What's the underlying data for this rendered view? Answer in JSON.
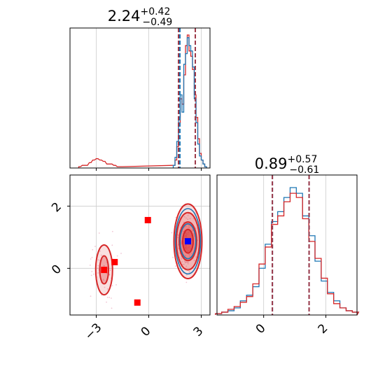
{
  "chart_data": {
    "type": "corner",
    "colors": {
      "blue": "#1f77b4",
      "red": "#d62728",
      "red_dash": "#9e3a4a",
      "marker_red": "#ff0000",
      "marker_blue": "#0000ff",
      "grid": "#cccccc"
    },
    "parameters": [
      {
        "title_value": "2.24",
        "title_plus": "+0.42",
        "title_minus": "−0.49",
        "range": [
          -4.5,
          3.5
        ],
        "ticks": [
          -3,
          0,
          3
        ],
        "tick_labels": [
          "−3",
          "0",
          "3"
        ],
        "quantiles_blue": [
          1.78,
          2.66
        ],
        "quantiles_red": [
          1.7,
          2.66
        ]
      },
      {
        "title_value": "0.89",
        "title_plus": "+0.57",
        "title_minus": "−0.61",
        "range": [
          -1.5,
          3.0
        ],
        "ticks": [
          0,
          2
        ],
        "tick_labels": [
          "0",
          "2"
        ],
        "quantiles_blue": [
          0.28,
          1.46
        ],
        "quantiles_red": [
          0.28,
          1.46
        ]
      }
    ],
    "hist_blue_p1": {
      "x": [
        1.45,
        1.55,
        1.65,
        1.75,
        1.85,
        1.95,
        2.05,
        2.15,
        2.25,
        2.35,
        2.45,
        2.55,
        2.65,
        2.75,
        2.85,
        2.95,
        3.05,
        3.15,
        3.25
      ],
      "y": [
        2,
        8,
        20,
        38,
        55,
        42,
        78,
        86,
        98,
        92,
        88,
        76,
        52,
        34,
        18,
        9,
        6,
        3,
        1
      ]
    },
    "hist_red_p1": {
      "x": [
        -3.95,
        -3.75,
        -3.55,
        -3.35,
        -3.15,
        -2.95,
        -2.75,
        -2.55,
        -2.35,
        -2.15,
        -1.95,
        -1.75,
        -1.55,
        1.45,
        1.55,
        1.65,
        1.75,
        1.85,
        1.95,
        2.05,
        2.15,
        2.25,
        2.35,
        2.45,
        2.55,
        2.65,
        2.75,
        2.85,
        2.95,
        3.05,
        3.15,
        3.25
      ],
      "y": [
        1,
        2,
        2,
        4,
        6,
        7,
        6,
        5,
        3,
        3,
        2,
        1,
        1,
        2,
        6,
        16,
        34,
        52,
        48,
        70,
        92,
        100,
        88,
        84,
        74,
        55,
        38,
        22,
        11,
        6,
        3,
        1
      ]
    },
    "hist_blue_p2": {
      "x": [
        -1.45,
        -1.25,
        -1.05,
        -0.85,
        -0.65,
        -0.45,
        -0.25,
        -0.05,
        0.15,
        0.35,
        0.55,
        0.75,
        0.95,
        1.15,
        1.35,
        1.55,
        1.75,
        1.95,
        2.15,
        2.35,
        2.55,
        2.75,
        2.95
      ],
      "y": [
        1,
        2,
        3,
        5,
        10,
        14,
        20,
        33,
        50,
        66,
        73,
        83,
        90,
        86,
        70,
        56,
        38,
        24,
        16,
        10,
        5,
        3,
        2
      ]
    },
    "hist_red_p2": {
      "x": [
        -1.45,
        -1.25,
        -1.05,
        -0.85,
        -0.65,
        -0.45,
        -0.25,
        -0.05,
        0.15,
        0.35,
        0.55,
        0.75,
        0.95,
        1.15,
        1.35,
        1.55,
        1.75,
        1.95,
        2.15,
        2.35,
        2.55,
        2.75,
        2.95
      ],
      "y": [
        1,
        2,
        4,
        6,
        9,
        13,
        22,
        36,
        48,
        64,
        70,
        80,
        86,
        83,
        68,
        52,
        40,
        26,
        15,
        8,
        5,
        3,
        2
      ]
    },
    "contours_red": [
      {
        "cx": 2.24,
        "cy": 0.87,
        "rx": 0.3,
        "ry": 0.38,
        "opacity": 0.95
      },
      {
        "cx": 2.24,
        "cy": 0.87,
        "rx": 0.5,
        "ry": 0.62,
        "opacity": 0.6
      },
      {
        "cx": 2.24,
        "cy": 0.87,
        "rx": 0.66,
        "ry": 0.92,
        "opacity": 0.45
      },
      {
        "cx": 2.24,
        "cy": 0.87,
        "rx": 0.8,
        "ry": 1.2,
        "opacity": 0.3
      },
      {
        "cx": -2.55,
        "cy": -0.05,
        "rx": 0.25,
        "ry": 0.45,
        "opacity": 0.6
      },
      {
        "cx": -2.55,
        "cy": -0.05,
        "rx": 0.48,
        "ry": 0.8,
        "opacity": 0.3
      }
    ],
    "contours_blue": [
      {
        "cx": 2.24,
        "cy": 0.87,
        "rx": 0.45,
        "ry": 0.56
      },
      {
        "cx": 2.24,
        "cy": 0.87,
        "rx": 0.72,
        "ry": 1.05
      }
    ],
    "markers_red": [
      {
        "x": -0.05,
        "y": 1.55
      },
      {
        "x": -1.95,
        "y": 0.2
      },
      {
        "x": -2.55,
        "y": -0.05
      },
      {
        "x": -0.65,
        "y": -1.1
      }
    ],
    "marker_blue": {
      "x": 2.24,
      "y": 0.87
    }
  }
}
